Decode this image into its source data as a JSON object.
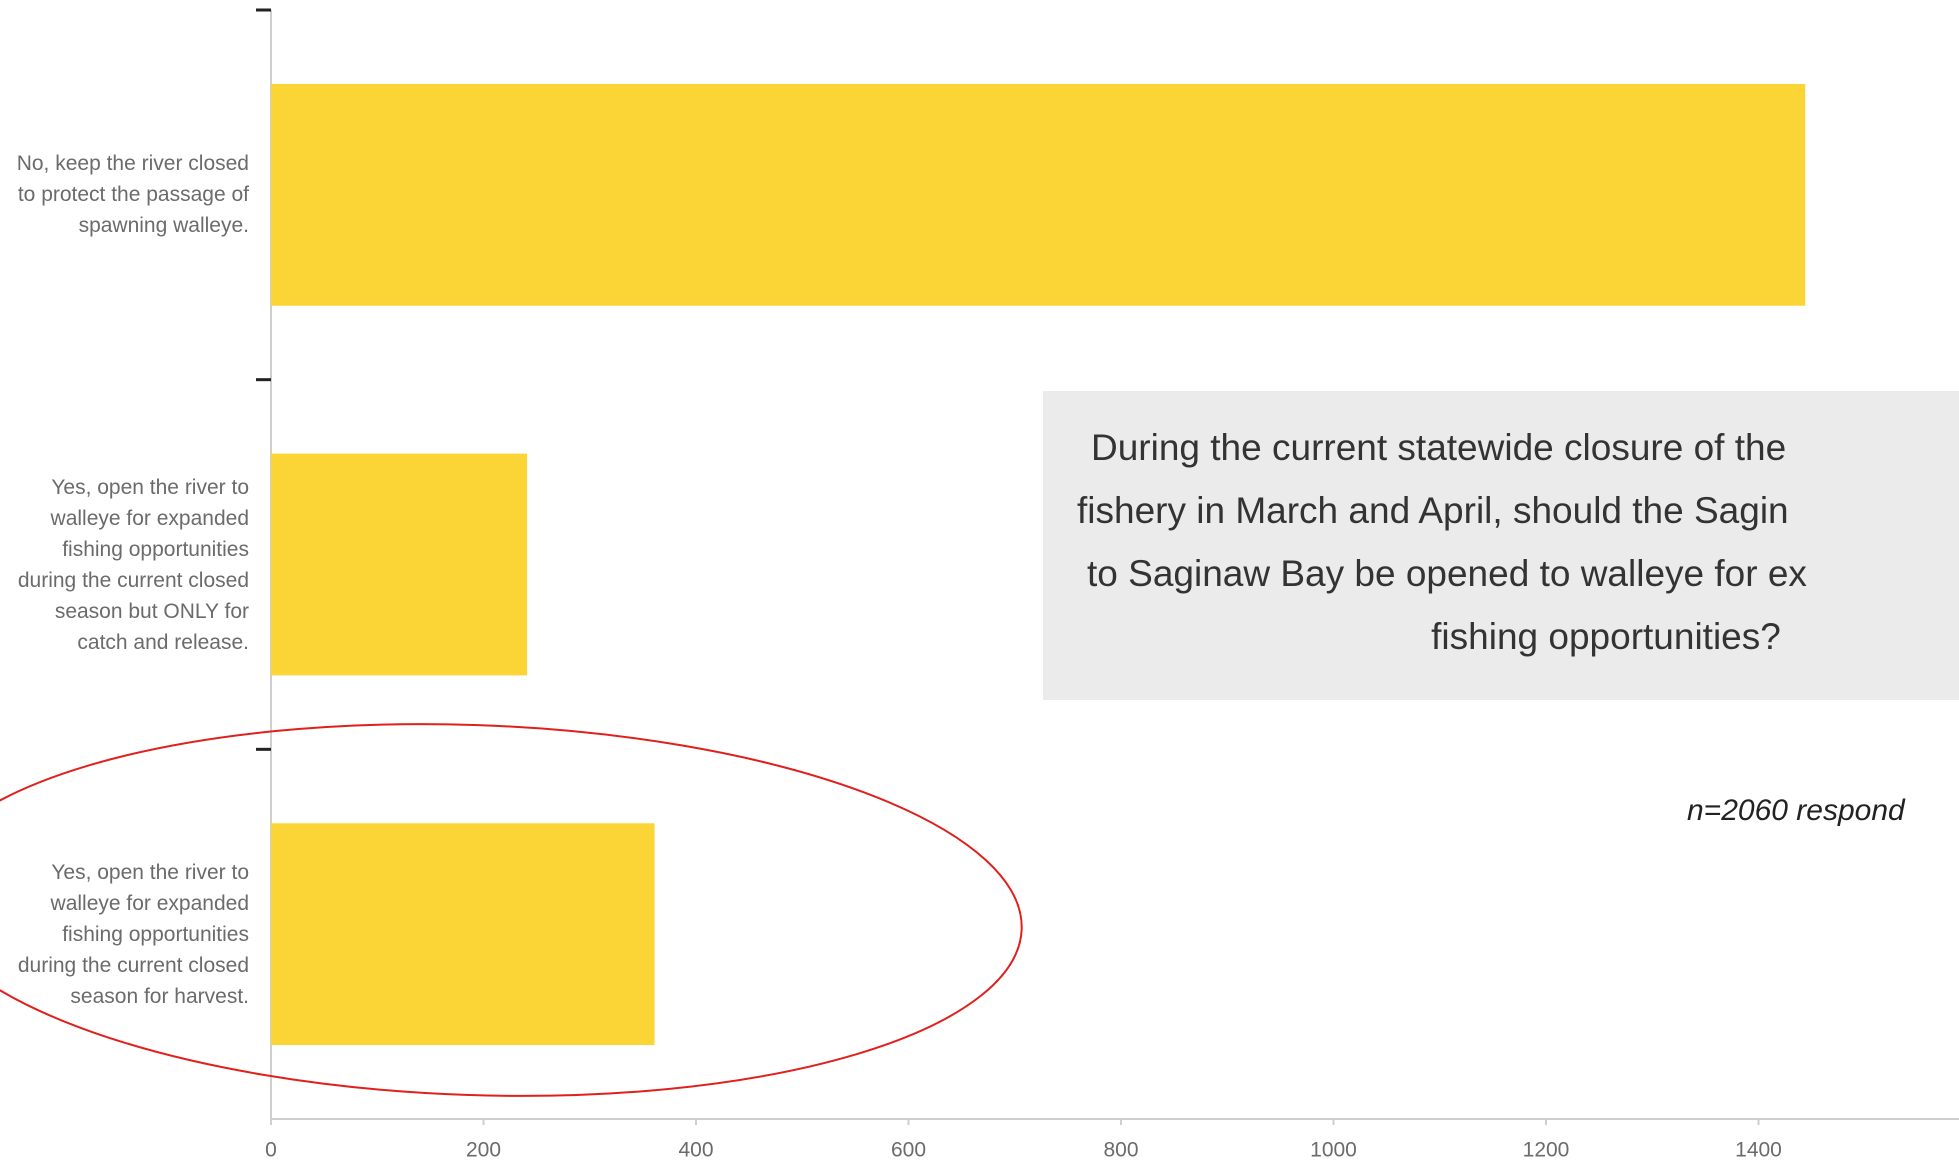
{
  "chart_data": {
    "type": "barh",
    "categories": [
      "No, keep the river closed to protect the passage of spawning walleye.",
      "Yes, open the river to walleye for expanded fishing opportunities during the current closed season but ONLY for catch and release.",
      "Yes, open the river to walleye for expanded fishing opportunities during the current closed season for harvest."
    ],
    "values": [
      1444,
      241,
      361
    ],
    "color": "#fbd535",
    "xlim": [
      0,
      1600
    ],
    "xticks": [
      0,
      200,
      400,
      600,
      800,
      1000,
      1200,
      1400
    ],
    "annotations": {
      "question_lines": [
        "During the current statewide closure of the",
        "fishery in March and April, should the Sagin",
        "to Saginaw Bay be opened to walleye for ex",
        "fishing opportunities?"
      ],
      "sample": "n=2060 respond"
    }
  }
}
